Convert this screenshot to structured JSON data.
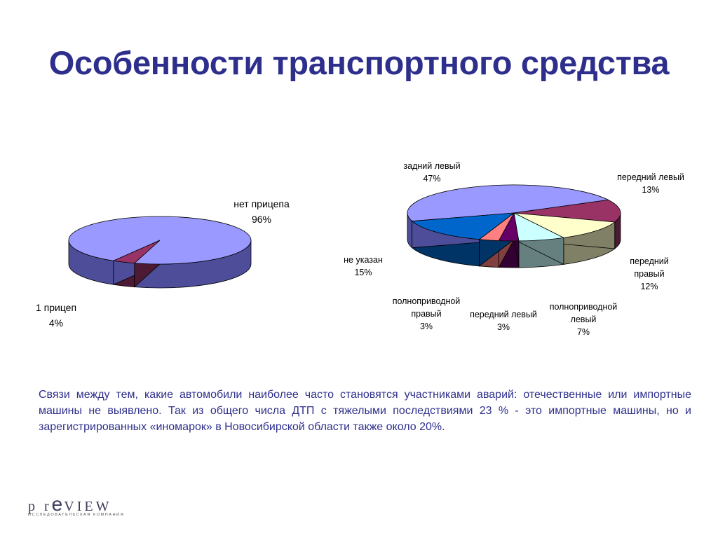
{
  "title": "Особенности транспортного средства",
  "chart_data": [
    {
      "type": "pie",
      "title": "",
      "slices": [
        {
          "label": "нет прицепа",
          "pct": "96%",
          "value": 96,
          "color": "#9999ff",
          "side": "#4d4d99"
        },
        {
          "label": "1 прицеп",
          "pct": "4%",
          "value": 4,
          "color": "#993366",
          "side": "#4d1a33"
        }
      ]
    },
    {
      "type": "pie",
      "title": "",
      "slices": [
        {
          "label": "задний левый",
          "pct": "47%",
          "value": 47,
          "color": "#9999ff",
          "side": "#4d4d99"
        },
        {
          "label": "передний левый",
          "pct": "13%",
          "value": 13,
          "color": "#993366",
          "side": "#4d1a33"
        },
        {
          "label": "передний правый",
          "pct": "12%",
          "value": 12,
          "color": "#ffffcc",
          "side": "#808066"
        },
        {
          "label": "полноприводной левый",
          "pct": "7%",
          "value": 7,
          "color": "#ccffff",
          "side": "#668080"
        },
        {
          "label": "передний левый",
          "pct": "3%",
          "value": 3,
          "color": "#660066",
          "side": "#330033"
        },
        {
          "label": "полноприводной правый",
          "pct": "3%",
          "value": 3,
          "color": "#ff8080",
          "side": "#804040"
        },
        {
          "label": "не указан",
          "pct": "15%",
          "value": 15,
          "color": "#0066cc",
          "side": "#003366"
        }
      ]
    }
  ],
  "paragraph": "Связи между тем, какие автомобили наиболее часто становятся участниками аварий: отечественные или импортные машины не выявлено. Так из общего числа ДТП с тяжелыми последствиями 23 %  - это импортные машины, но и зарегистрированных «иномарок» в Новосибирской области также около 20%.",
  "logo": {
    "p": "p r",
    "e": "e",
    "view": "VIEW",
    "sub": "ИССЛЕДОВАТЕЛЬСКАЯ КОМПАНИЯ"
  }
}
